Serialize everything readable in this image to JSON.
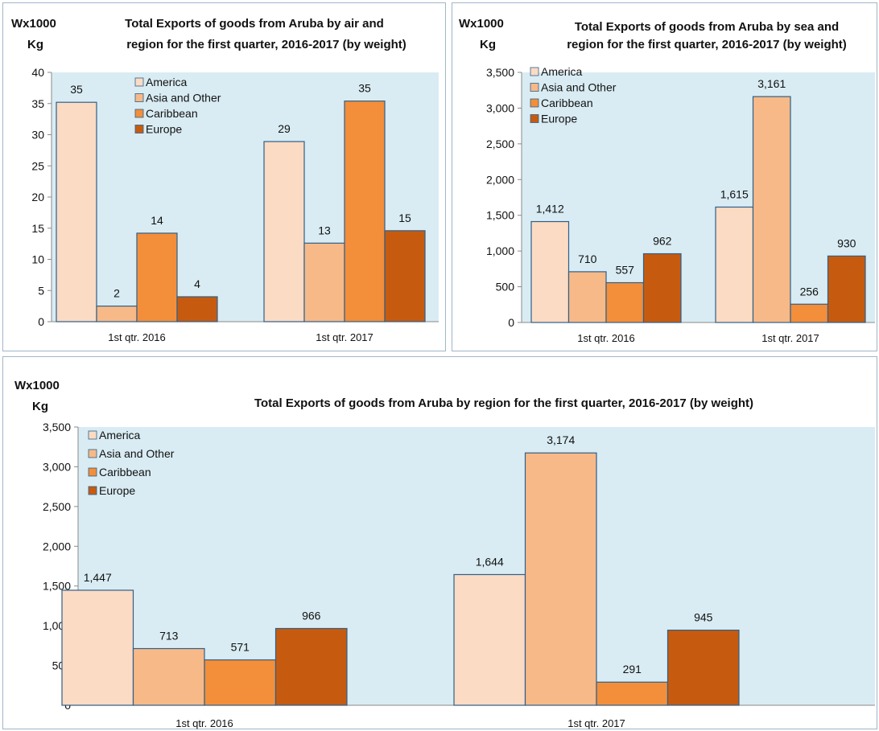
{
  "colors": {
    "plot_bg": "#d9ecf3",
    "bar_border": "#2f5f8a",
    "America": "#fbdbc3",
    "Asia and Other": "#f7b987",
    "Caribbean": "#f38e3a",
    "Europe": "#c65b10"
  },
  "charts": {
    "air": {
      "title_line1": "Total Exports of goods from Aruba by air and",
      "title_line2": "region for the first quarter, 2016-2017 (by weight)",
      "ylabel_line1": "Wx1000",
      "ylabel_line2": "Kg"
    },
    "sea": {
      "title_line1": "Total Exports of goods from Aruba by sea and",
      "title_line2": "region for the first quarter, 2016-2017 (by weight)",
      "ylabel_line1": "Wx1000",
      "ylabel_line2": "Kg"
    },
    "total": {
      "title_line1": "Total Exports of goods from Aruba  by region for the first quarter, 2016-2017  (by weight)",
      "ylabel_line1": "Wx1000",
      "ylabel_line2": "Kg"
    }
  },
  "chart_data": [
    {
      "id": "air",
      "type": "bar",
      "title": "Total Exports of goods from Aruba by air and region for the first quarter, 2016-2017 (by weight)",
      "ylabel": "Wx1000 Kg",
      "categories": [
        "1st qtr. 2016",
        "1st qtr. 2017"
      ],
      "series": [
        {
          "name": "America",
          "values": [
            35.2,
            28.9
          ],
          "labels": [
            "35",
            "29"
          ]
        },
        {
          "name": "Asia and Other",
          "values": [
            2.5,
            12.6
          ],
          "labels": [
            "2",
            "13"
          ]
        },
        {
          "name": "Caribbean",
          "values": [
            14.2,
            35.4
          ],
          "labels": [
            "14",
            "35"
          ]
        },
        {
          "name": "Europe",
          "values": [
            4.0,
            14.6
          ],
          "labels": [
            "4",
            "15"
          ]
        }
      ],
      "ylim": [
        0,
        40
      ],
      "yticks": [
        0,
        5,
        10,
        15,
        20,
        25,
        30,
        35,
        40
      ],
      "ytick_labels": [
        "0",
        "5",
        "10",
        "15",
        "20",
        "25",
        "30",
        "35",
        "40"
      ],
      "grid": false,
      "legend": "top-left"
    },
    {
      "id": "sea",
      "type": "bar",
      "title": "Total Exports of goods from Aruba by sea and region for the first quarter, 2016-2017 (by weight)",
      "ylabel": "Wx1000 Kg",
      "categories": [
        "1st qtr. 2016",
        "1st qtr. 2017"
      ],
      "series": [
        {
          "name": "America",
          "values": [
            1412,
            1615
          ],
          "labels": [
            "1,412",
            "1,615"
          ]
        },
        {
          "name": "Asia and Other",
          "values": [
            710,
            3161
          ],
          "labels": [
            "710",
            "3,161"
          ]
        },
        {
          "name": "Caribbean",
          "values": [
            557,
            256
          ],
          "labels": [
            "557",
            "256"
          ]
        },
        {
          "name": "Europe",
          "values": [
            962,
            930
          ],
          "labels": [
            "962",
            "930"
          ]
        }
      ],
      "ylim": [
        0,
        3500
      ],
      "yticks": [
        0,
        500,
        1000,
        1500,
        2000,
        2500,
        3000,
        3500
      ],
      "ytick_labels": [
        "0",
        "500",
        "1,000",
        "1,500",
        "2,000",
        "2,500",
        "3,000",
        "3,500"
      ],
      "grid": false,
      "legend": "top-left"
    },
    {
      "id": "total",
      "type": "bar",
      "title": "Total Exports of goods from Aruba by region for the first quarter, 2016-2017 (by weight)",
      "ylabel": "Wx1000 Kg",
      "categories": [
        "1st qtr. 2016",
        "1st qtr. 2017"
      ],
      "series": [
        {
          "name": "America",
          "values": [
            1447,
            1644
          ],
          "labels": [
            "1,447",
            "1,644"
          ]
        },
        {
          "name": "Asia and Other",
          "values": [
            713,
            3174
          ],
          "labels": [
            "713",
            "3,174"
          ]
        },
        {
          "name": "Caribbean",
          "values": [
            571,
            291
          ],
          "labels": [
            "571",
            "291"
          ]
        },
        {
          "name": "Europe",
          "values": [
            966,
            945
          ],
          "labels": [
            "966",
            "945"
          ]
        }
      ],
      "ylim": [
        0,
        3500
      ],
      "yticks": [
        0,
        500,
        1000,
        1500,
        2000,
        2500,
        3000,
        3500
      ],
      "ytick_labels": [
        "0",
        "500",
        "1,000",
        "1,500",
        "2,000",
        "2,500",
        "3,000",
        "3,500"
      ],
      "grid": false,
      "legend": "top-left"
    }
  ]
}
